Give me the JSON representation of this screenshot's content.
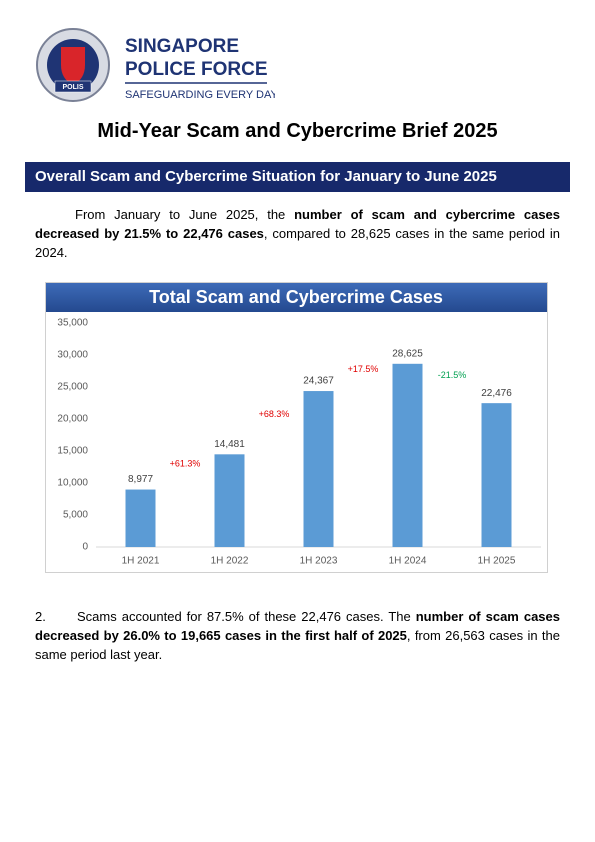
{
  "header": {
    "org_line1": "SINGAPORE",
    "org_line2": "POLICE FORCE",
    "tagline": "SAFEGUARDING EVERY DAY",
    "badge_text": "POLIS"
  },
  "title": "Mid-Year Scam and Cybercrime Brief 2025",
  "section_heading": "Overall Scam and Cybercrime Situation for January to June 2025",
  "paragraphs": [
    {
      "runs": [
        {
          "text": "From January to June 2025, the ",
          "bold": false
        },
        {
          "text": "number of scam and cybercrime cases decreased by 21.5% to 22,476 cases",
          "bold": true
        },
        {
          "text": ", compared to 28,625 cases in the same period in 2024.",
          "bold": false
        }
      ]
    },
    {
      "number": "2.",
      "runs": [
        {
          "text": "Scams accounted for 87.5% of these 22,476 cases. The ",
          "bold": false
        },
        {
          "text": "number of scam cases decreased by 26.0% to 19,665 cases in the first half of 2025",
          "bold": true
        },
        {
          "text": ", from 26,563 cases in the same period last year.",
          "bold": false
        }
      ]
    }
  ],
  "chart_data": {
    "type": "bar",
    "title": "Total Scam and Cybercrime Cases",
    "categories": [
      "1H 2021",
      "1H 2022",
      "1H 2023",
      "1H 2024",
      "1H 2025"
    ],
    "values": [
      8977,
      14481,
      24367,
      28625,
      22476
    ],
    "value_labels": [
      "8,977",
      "14,481",
      "24,367",
      "28,625",
      "22,476"
    ],
    "color": "#5b9bd5",
    "ylim": [
      0,
      35000
    ],
    "yticks": [
      0,
      {
        "value": 5000,
        "label": "5,000"
      },
      {
        "value": 10000,
        "label": "10,000"
      },
      {
        "value": 15000,
        "label": "15,000"
      },
      {
        "value": 20000,
        "label": "20,000"
      },
      {
        "value": 25000,
        "label": "25,000"
      },
      {
        "value": 30000,
        "label": "30,000"
      },
      {
        "value": 35000,
        "label": "35,000"
      }
    ],
    "grid": false,
    "annotations": [
      {
        "text": "+61.3%",
        "color": "#e00000"
      },
      {
        "text": "+68.3%",
        "color": "#e00000"
      },
      {
        "text": "+17.5%",
        "color": "#e00000"
      },
      {
        "text": "-21.5%",
        "color": "#00a050"
      }
    ]
  }
}
